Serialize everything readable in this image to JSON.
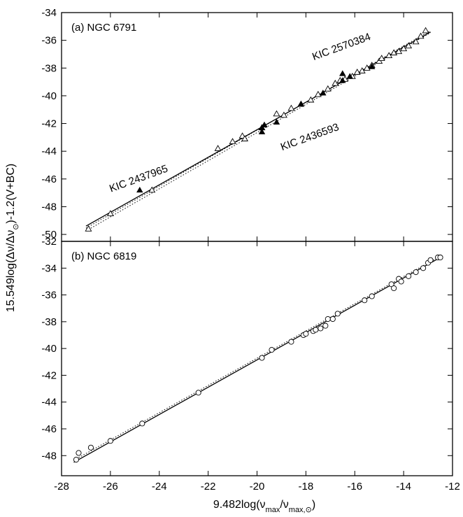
{
  "chart_data": [
    {
      "type": "scatter",
      "panel_label": "(a) NGC 6791",
      "xlim": [
        -28,
        -12
      ],
      "ylim": [
        -50.5,
        -34
      ],
      "x_ticks": [
        -28,
        -26,
        -24,
        -22,
        -20,
        -18,
        -16,
        -14,
        -12
      ],
      "y_ticks": [
        -34,
        -36,
        -38,
        -40,
        -42,
        -44,
        -46,
        -48,
        -50
      ],
      "y_tick_labels": [
        "-34",
        "-36",
        "-38",
        "-40",
        "-42",
        "-44",
        "-46",
        "-48",
        "-50"
      ],
      "grid": false,
      "series": [
        {
          "marker": "open-triangle",
          "x": [
            -26.9,
            -26.0,
            -24.3,
            -21.6,
            -21.0,
            -20.6,
            -20.5,
            -19.8,
            -19.2,
            -18.9,
            -18.6,
            -18.2,
            -17.8,
            -17.5,
            -17.1,
            -16.8,
            -16.6,
            -16.4,
            -16.1,
            -15.9,
            -15.7,
            -15.5,
            -15.3,
            -15.0,
            -14.9,
            -14.6,
            -14.4,
            -14.2,
            -14.0,
            -13.8,
            -13.5,
            -13.3,
            -13.1
          ],
          "y": [
            -49.6,
            -48.5,
            -46.8,
            -43.8,
            -43.3,
            -42.9,
            -43.1,
            -42.3,
            -41.3,
            -41.4,
            -40.9,
            -40.6,
            -40.3,
            -39.9,
            -39.5,
            -39.1,
            -38.9,
            -38.8,
            -38.6,
            -38.3,
            -38.2,
            -38.0,
            -37.8,
            -37.5,
            -37.3,
            -37.1,
            -36.9,
            -36.8,
            -36.6,
            -36.4,
            -36.1,
            -35.7,
            -35.3
          ]
        },
        {
          "marker": "filled-triangle",
          "x": [
            -24.8,
            -19.8,
            -19.8,
            -19.7,
            -19.2,
            -18.2,
            -17.3,
            -16.5,
            -16.5,
            -16.2,
            -15.3
          ],
          "y": [
            -46.8,
            -42.6,
            -42.3,
            -42.1,
            -41.9,
            -40.6,
            -39.8,
            -38.4,
            -38.9,
            -38.6,
            -37.9
          ]
        }
      ],
      "fit_lines": [
        {
          "style": "solid",
          "x": [
            -27,
            -12.9
          ],
          "y": [
            -49.4,
            -35.4
          ]
        },
        {
          "style": "dotted",
          "x": [
            -27,
            -12.9
          ],
          "y": [
            -49.75,
            -35.45
          ]
        },
        {
          "style": "dotted",
          "x": [
            -27,
            -12.9
          ],
          "y": [
            -49.55,
            -35.3
          ]
        }
      ],
      "annotations": [
        {
          "text": "KIC 2570384",
          "x": -16.5,
          "y": -37.8
        },
        {
          "text": "KIC 2436593",
          "x": -19.8,
          "y": -43.2
        },
        {
          "text": "KIC 2437965",
          "x": -24.8,
          "y": -46.2
        }
      ]
    },
    {
      "type": "scatter",
      "panel_label": "(b) NGC 6819",
      "xlim": [
        -28,
        -12
      ],
      "ylim": [
        -49.5,
        -32
      ],
      "x_ticks": [
        -28,
        -26,
        -24,
        -22,
        -20,
        -18,
        -16,
        -14,
        -12
      ],
      "x_tick_labels": [
        "-28",
        "-26",
        "-24",
        "-22",
        "-20",
        "-18",
        "-16",
        "-14",
        "-12"
      ],
      "y_ticks": [
        -32,
        -34,
        -36,
        -38,
        -40,
        -42,
        -44,
        -46,
        -48
      ],
      "y_tick_labels": [
        "-32",
        "-34",
        "-36",
        "-38",
        "-40",
        "-42",
        "-44",
        "-46",
        "-48"
      ],
      "grid": false,
      "series": [
        {
          "marker": "open-circle",
          "x": [
            -27.4,
            -27.3,
            -26.8,
            -26.0,
            -24.7,
            -22.4,
            -19.8,
            -19.4,
            -18.6,
            -18.1,
            -18.0,
            -17.7,
            -17.6,
            -17.4,
            -17.2,
            -17.1,
            -16.9,
            -16.7,
            -15.6,
            -15.3,
            -14.5,
            -14.4,
            -14.2,
            -14.1,
            -13.8,
            -13.5,
            -13.2,
            -13.0,
            -12.9,
            -12.6,
            -12.5
          ],
          "y": [
            -48.3,
            -47.8,
            -47.4,
            -46.9,
            -45.6,
            -43.3,
            -40.7,
            -40.1,
            -39.5,
            -39.0,
            -38.9,
            -38.7,
            -38.6,
            -38.5,
            -38.3,
            -37.8,
            -37.8,
            -37.4,
            -36.4,
            -36.1,
            -35.2,
            -35.5,
            -34.8,
            -35.0,
            -34.6,
            -34.3,
            -34.0,
            -33.6,
            -33.4,
            -33.2,
            -33.2
          ]
        }
      ],
      "fit_lines": [
        {
          "style": "solid",
          "x": [
            -27.5,
            -12.4
          ],
          "y": [
            -48.5,
            -33.1
          ]
        },
        {
          "style": "dotted",
          "x": [
            -27.5,
            -12.4
          ],
          "y": [
            -48.35,
            -33.0
          ]
        }
      ]
    }
  ],
  "axes": {
    "xlabel_parts": [
      "9.482log(ν",
      "max",
      "/ν",
      "max,⊙",
      ")"
    ],
    "ylabel_parts": [
      "15.549log(Δν/Δν",
      "⊙",
      ")-1.2(V+BC)"
    ]
  }
}
